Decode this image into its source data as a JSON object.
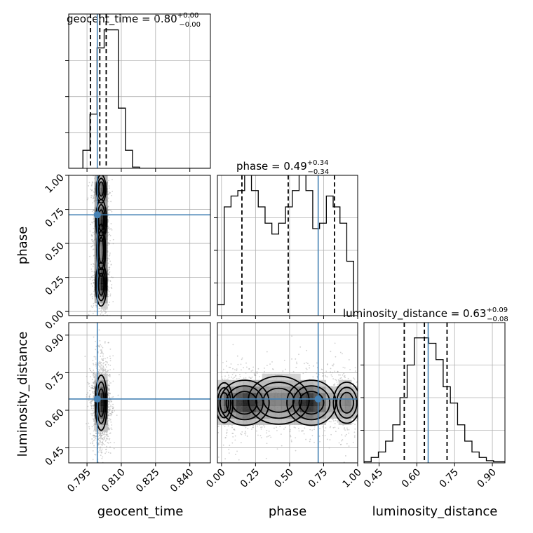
{
  "chart_data": {
    "type": "corner",
    "grid": true,
    "colors": {
      "truth": "#4682b4",
      "hist": "#000000",
      "contour_fill": "#555555"
    },
    "params": [
      {
        "key": "geocent_time",
        "label": "geocent_time",
        "range": [
          0.787,
          0.849
        ],
        "ticks": [
          "0.795",
          "0.810",
          "0.825",
          "0.840"
        ],
        "tick_values": [
          0.795,
          0.81,
          0.825,
          0.84
        ],
        "truth": 0.7995,
        "title_main": "geocent_time = 0.80",
        "title_sup": "+0.00",
        "title_sub": "−0.00",
        "quantiles": [
          0.7965,
          0.8006,
          0.8034
        ],
        "hist": {
          "edges_start": 0.787,
          "bin_width": 0.0031,
          "counts": [
            0,
            0,
            0.15,
            0.45,
            1.0,
            1.15,
            1.15,
            0.5,
            0.15,
            0.01,
            0,
            0,
            0,
            0,
            0,
            0,
            0,
            0,
            0,
            0
          ]
        }
      },
      {
        "key": "phase",
        "label": "phase",
        "range": [
          -0.03,
          1.0
        ],
        "ticks": [
          "0.00",
          "0.25",
          "0.50",
          "0.75",
          "1.00"
        ],
        "tick_values": [
          0,
          0.25,
          0.5,
          0.75,
          1.0
        ],
        "truth": 0.71,
        "title_main": "phase = 0.49",
        "title_sup": "+0.34",
        "title_sub": "−0.34",
        "quantiles": [
          0.15,
          0.49,
          0.83
        ],
        "hist": {
          "edges_start": -0.03,
          "bin_width": 0.05,
          "counts": [
            0.1,
            1.0,
            1.1,
            1.15,
            1.35,
            1.15,
            1.0,
            0.85,
            0.75,
            0.85,
            1.0,
            1.15,
            1.3,
            1.15,
            0.8,
            0.85,
            1.1,
            1.0,
            0.85,
            0.5
          ]
        }
      },
      {
        "key": "luminosity_distance",
        "label": "luminosity_distance",
        "range": [
          0.39,
          0.95
        ],
        "ticks": [
          "0.45",
          "0.60",
          "0.75",
          "0.90"
        ],
        "tick_values": [
          0.45,
          0.6,
          0.75,
          0.9
        ],
        "truth": 0.645,
        "title_main": "luminosity_distance = 0.63",
        "title_sup": "+0.09",
        "title_sub": "−0.08",
        "quantiles": [
          0.55,
          0.63,
          0.72
        ],
        "hist": {
          "edges_start": 0.39,
          "bin_width": 0.0286,
          "counts": [
            0.01,
            0.05,
            0.1,
            0.2,
            0.35,
            0.6,
            0.9,
            1.15,
            1.15,
            1.1,
            0.95,
            0.7,
            0.55,
            0.35,
            0.2,
            0.1,
            0.05,
            0.02,
            0.01,
            0.01
          ]
        }
      }
    ],
    "blobs_2d": {
      "phase_vs_geocent_time": [
        {
          "x": 0.8012,
          "y": 0.2,
          "sx": 0.0012,
          "sy": 0.08,
          "w": 1.0
        },
        {
          "x": 0.8012,
          "y": 0.67,
          "sx": 0.0012,
          "sy": 0.08,
          "w": 0.9
        },
        {
          "x": 0.8012,
          "y": 0.9,
          "sx": 0.0012,
          "sy": 0.06,
          "w": 0.7
        },
        {
          "x": 0.8012,
          "y": 0.45,
          "sx": 0.0012,
          "sy": 0.12,
          "w": 0.55
        }
      ],
      "luminosity_distance_vs_geocent_time": [
        {
          "x": 0.8012,
          "y": 0.63,
          "sx": 0.0013,
          "sy": 0.055,
          "w": 1.0
        }
      ],
      "luminosity_distance_vs_phase": [
        {
          "x": 0.17,
          "y": 0.63,
          "sx": 0.09,
          "sy": 0.045,
          "w": 1.0
        },
        {
          "x": 0.66,
          "y": 0.63,
          "sx": 0.09,
          "sy": 0.045,
          "w": 1.0
        },
        {
          "x": 0.42,
          "y": 0.64,
          "sx": 0.14,
          "sy": 0.06,
          "w": 0.55
        },
        {
          "x": 0.92,
          "y": 0.63,
          "sx": 0.06,
          "sy": 0.05,
          "w": 0.6
        },
        {
          "x": 0.02,
          "y": 0.63,
          "sx": 0.04,
          "sy": 0.05,
          "w": 0.55
        }
      ]
    }
  }
}
